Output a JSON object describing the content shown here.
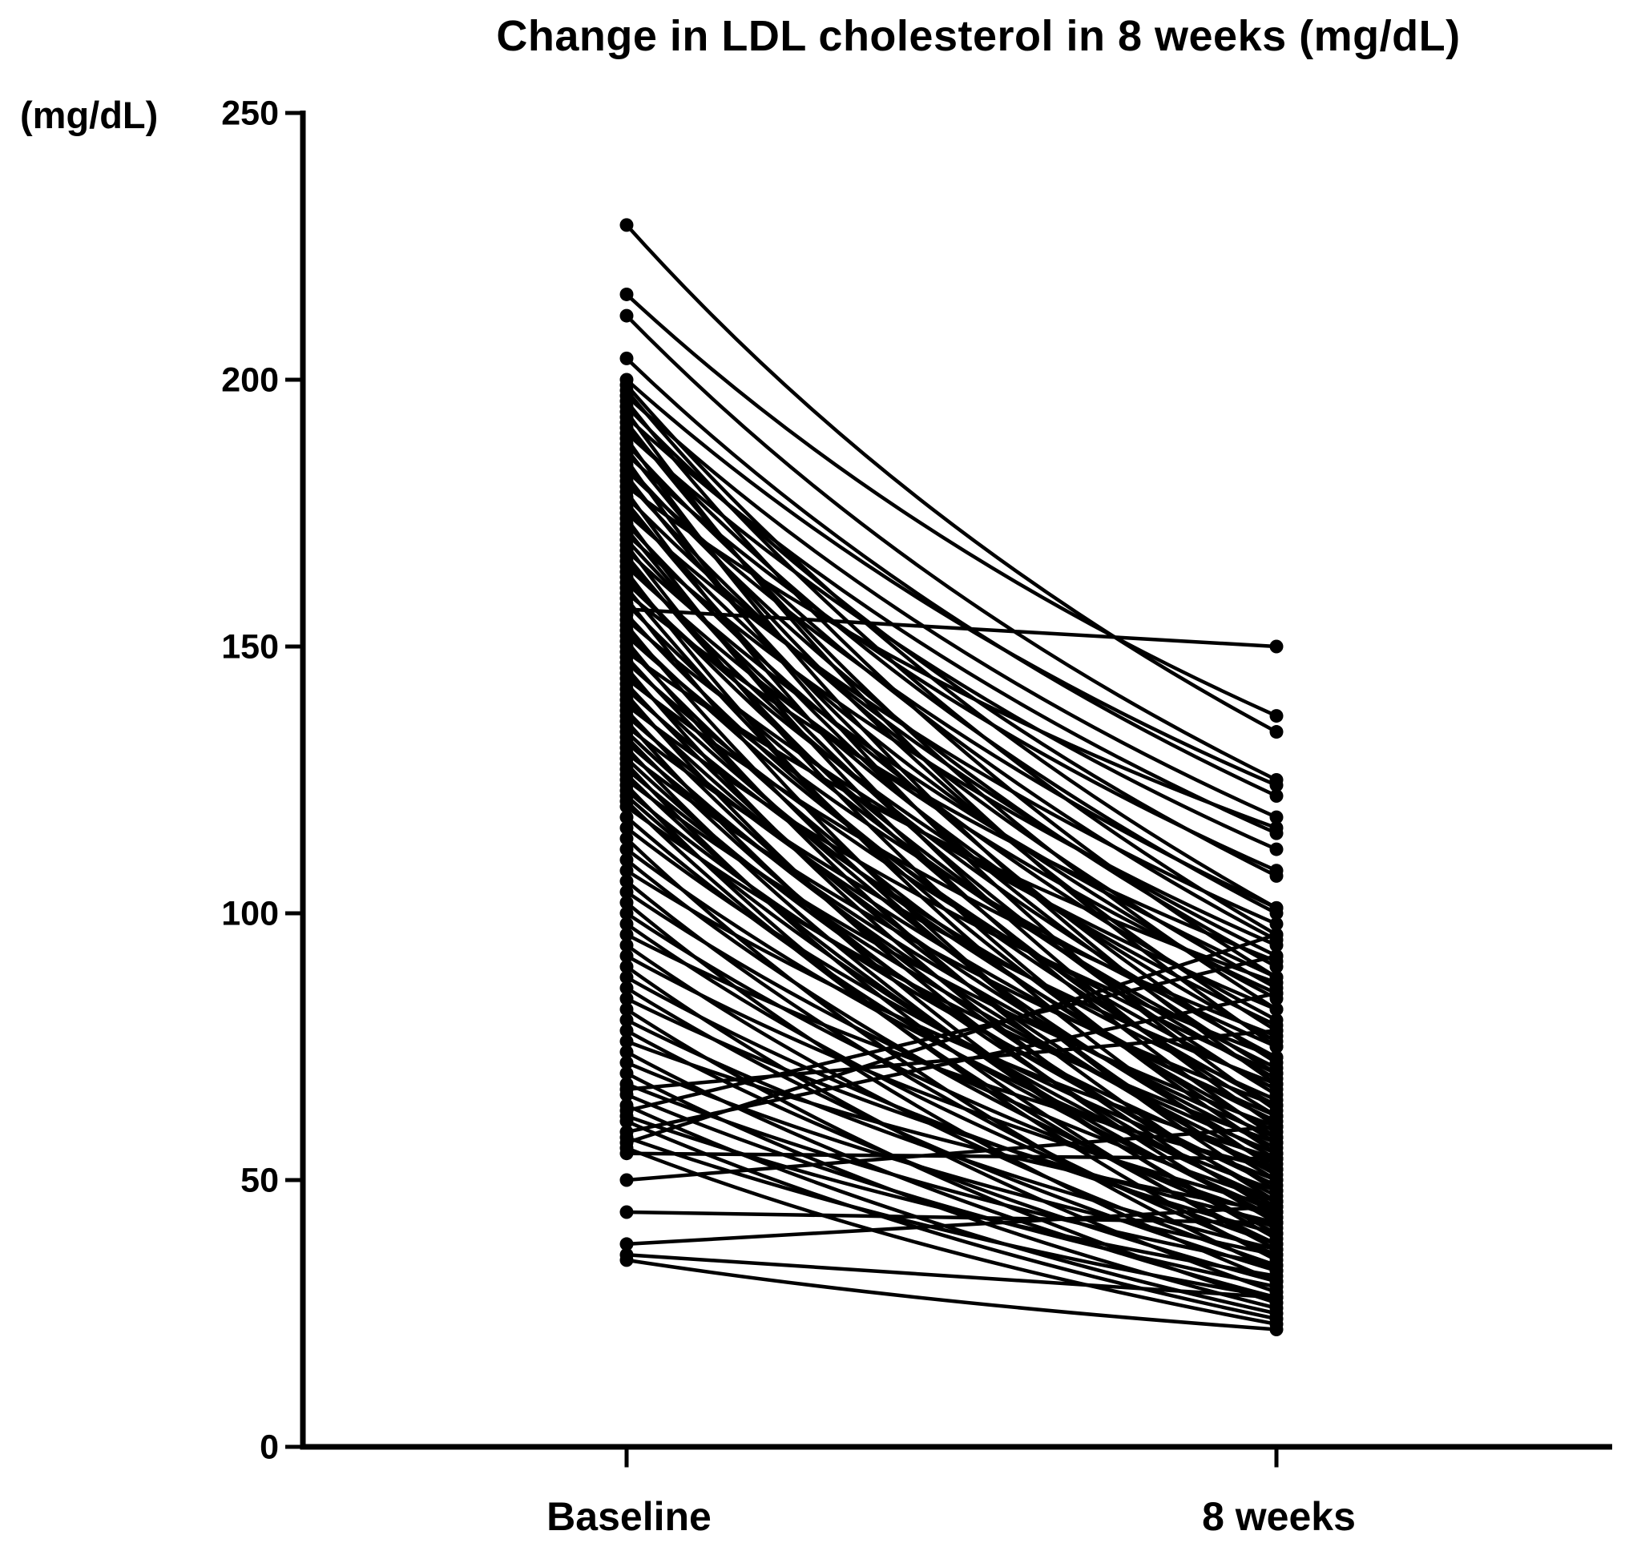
{
  "title": "Change in LDL cholesterol in 8 weeks (mg/dL)",
  "chart_data": {
    "type": "line",
    "subtype": "paired-slope-plot",
    "title": "Change in LDL cholesterol in 8 weeks (mg/dL)",
    "ylabel": "(mg/dL)",
    "xlabel": "",
    "categories": [
      "Baseline",
      "8 weeks"
    ],
    "ylim": [
      0,
      250
    ],
    "yticks": [
      0,
      50,
      100,
      150,
      200,
      250
    ],
    "grid": false,
    "legend_position": "none",
    "marker": "filled-circle",
    "line_color": "#000000",
    "marker_color": "#000000",
    "background_color": "#ffffff",
    "pairs": [
      [
        229,
        134
      ],
      [
        216,
        137
      ],
      [
        212,
        125
      ],
      [
        204,
        122
      ],
      [
        200,
        124
      ],
      [
        199,
        101
      ],
      [
        198,
        96
      ],
      [
        197,
        118
      ],
      [
        196,
        88
      ],
      [
        195,
        107
      ],
      [
        194,
        75
      ],
      [
        193,
        115
      ],
      [
        192,
        82
      ],
      [
        191,
        100
      ],
      [
        190,
        112
      ],
      [
        189,
        68
      ],
      [
        188,
        95
      ],
      [
        187,
        78
      ],
      [
        186,
        108
      ],
      [
        185,
        63
      ],
      [
        184,
        90
      ],
      [
        183,
        101
      ],
      [
        182,
        72
      ],
      [
        181,
        86
      ],
      [
        180,
        116
      ],
      [
        179,
        60
      ],
      [
        178,
        92
      ],
      [
        177,
        70
      ],
      [
        176,
        84
      ],
      [
        175,
        98
      ],
      [
        174,
        58
      ],
      [
        173,
        80
      ],
      [
        172,
        66
      ],
      [
        171,
        94
      ],
      [
        170,
        76
      ],
      [
        169,
        55
      ],
      [
        168,
        88
      ],
      [
        167,
        62
      ],
      [
        166,
        73
      ],
      [
        165,
        85
      ],
      [
        164,
        52
      ],
      [
        163,
        69
      ],
      [
        162,
        79
      ],
      [
        161,
        57
      ],
      [
        160,
        91
      ],
      [
        159,
        48
      ],
      [
        158,
        71
      ],
      [
        157,
        150
      ],
      [
        156,
        64
      ],
      [
        155,
        82
      ],
      [
        154,
        50
      ],
      [
        153,
        67
      ],
      [
        152,
        75
      ],
      [
        151,
        46
      ],
      [
        150,
        59
      ],
      [
        149,
        87
      ],
      [
        148,
        54
      ],
      [
        147,
        70
      ],
      [
        146,
        44
      ],
      [
        145,
        61
      ],
      [
        144,
        77
      ],
      [
        143,
        51
      ],
      [
        142,
        65
      ],
      [
        141,
        42
      ],
      [
        140,
        56
      ],
      [
        139,
        73
      ],
      [
        138,
        47
      ],
      [
        137,
        62
      ],
      [
        136,
        39
      ],
      [
        135,
        68
      ],
      [
        134,
        53
      ],
      [
        133,
        45
      ],
      [
        132,
        58
      ],
      [
        131,
        40
      ],
      [
        130,
        64
      ],
      [
        129,
        49
      ],
      [
        128,
        37
      ],
      [
        127,
        55
      ],
      [
        126,
        43
      ],
      [
        125,
        60
      ],
      [
        124,
        35
      ],
      [
        123,
        52
      ],
      [
        122,
        46
      ],
      [
        121,
        38
      ],
      [
        120,
        57
      ],
      [
        118,
        44
      ],
      [
        116,
        50
      ],
      [
        114,
        33
      ],
      [
        112,
        48
      ],
      [
        110,
        41
      ],
      [
        108,
        54
      ],
      [
        106,
        36
      ],
      [
        104,
        46
      ],
      [
        102,
        31
      ],
      [
        100,
        43
      ],
      [
        98,
        38
      ],
      [
        96,
        52
      ],
      [
        94,
        34
      ],
      [
        92,
        45
      ],
      [
        90,
        29
      ],
      [
        88,
        40
      ],
      [
        86,
        33
      ],
      [
        84,
        42
      ],
      [
        82,
        27
      ],
      [
        80,
        37
      ],
      [
        78,
        31
      ],
      [
        76,
        44
      ],
      [
        74,
        28
      ],
      [
        72,
        36
      ],
      [
        70,
        26
      ],
      [
        68,
        34
      ],
      [
        67,
        78
      ],
      [
        66,
        30
      ],
      [
        64,
        25
      ],
      [
        63,
        92
      ],
      [
        62,
        32
      ],
      [
        61,
        24
      ],
      [
        59,
        85
      ],
      [
        58,
        28
      ],
      [
        57,
        96
      ],
      [
        56,
        23
      ],
      [
        55,
        54
      ],
      [
        50,
        60
      ],
      [
        44,
        42
      ],
      [
        38,
        45
      ],
      [
        36,
        28
      ],
      [
        35,
        22
      ]
    ]
  }
}
